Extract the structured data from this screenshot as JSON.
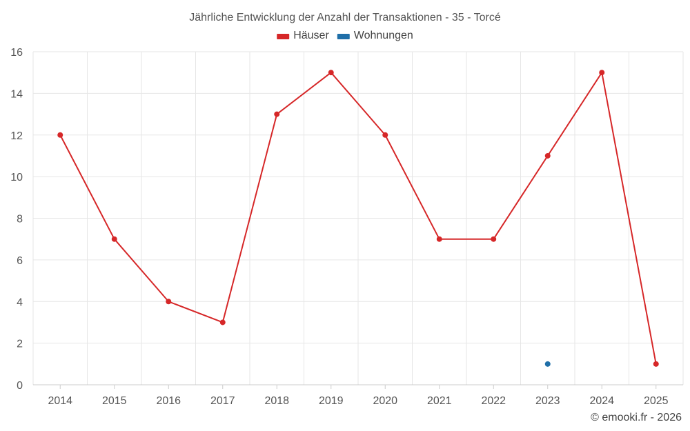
{
  "chart_data": {
    "type": "line",
    "title": "Jährliche Entwicklung der Anzahl der Transaktionen - 35 - Torcé",
    "categories": [
      "2014",
      "2015",
      "2016",
      "2017",
      "2018",
      "2019",
      "2020",
      "2021",
      "2022",
      "2023",
      "2024",
      "2025"
    ],
    "series": [
      {
        "name": "Häuser",
        "color": "#d62728",
        "values": [
          12,
          7,
          4,
          3,
          13,
          15,
          12,
          7,
          7,
          11,
          15,
          1
        ]
      },
      {
        "name": "Wohnungen",
        "color": "#1f6fa8",
        "values": [
          null,
          null,
          null,
          null,
          null,
          null,
          null,
          null,
          null,
          1,
          null,
          null
        ]
      }
    ],
    "ylim": [
      0,
      16
    ],
    "yticks": [
      0,
      2,
      4,
      6,
      8,
      10,
      12,
      14,
      16
    ],
    "grid": true,
    "legend_position": "top-center",
    "xlabel": "",
    "ylabel": ""
  },
  "credit": "© emooki.fr - 2026"
}
